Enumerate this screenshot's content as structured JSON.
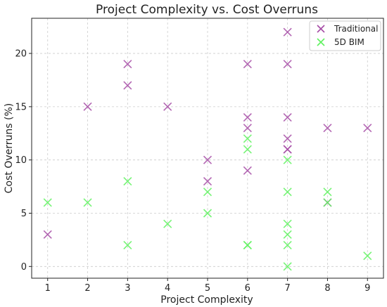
{
  "chart_data": {
    "type": "scatter",
    "title": "Project Complexity vs. Cost Overruns",
    "xlabel": "Project Complexity",
    "ylabel": "Cost Overruns (%)",
    "xlim": [
      0.6,
      9.4
    ],
    "ylim": [
      -1.1,
      23.3
    ],
    "xticks": [
      1,
      2,
      3,
      4,
      5,
      6,
      7,
      8,
      9
    ],
    "yticks": [
      0,
      5,
      10,
      15,
      20
    ],
    "grid": true,
    "legend_position": "top-right",
    "marker": "x",
    "series": [
      {
        "name": "Traditional",
        "color": "#a64ca6",
        "points": [
          [
            1,
            3
          ],
          [
            2,
            15
          ],
          [
            3,
            19
          ],
          [
            3,
            17
          ],
          [
            4,
            15
          ],
          [
            5,
            10
          ],
          [
            5,
            8
          ],
          [
            6,
            19
          ],
          [
            6,
            14
          ],
          [
            6,
            13
          ],
          [
            6,
            9
          ],
          [
            7,
            22
          ],
          [
            7,
            19
          ],
          [
            7,
            14
          ],
          [
            7,
            12
          ],
          [
            7,
            11
          ],
          [
            7,
            11
          ],
          [
            8,
            13
          ],
          [
            8,
            6
          ],
          [
            9,
            13
          ]
        ]
      },
      {
        "name": "5D BIM",
        "color": "#5ff25f",
        "points": [
          [
            1,
            6
          ],
          [
            2,
            6
          ],
          [
            3,
            8
          ],
          [
            3,
            2
          ],
          [
            4,
            4
          ],
          [
            5,
            7
          ],
          [
            5,
            5
          ],
          [
            6,
            12
          ],
          [
            6,
            11
          ],
          [
            6,
            2
          ],
          [
            6,
            2
          ],
          [
            7,
            10
          ],
          [
            7,
            7
          ],
          [
            7,
            4
          ],
          [
            7,
            3
          ],
          [
            7,
            2
          ],
          [
            7,
            0
          ],
          [
            8,
            7
          ],
          [
            8,
            6
          ],
          [
            9,
            1
          ]
        ]
      }
    ]
  }
}
